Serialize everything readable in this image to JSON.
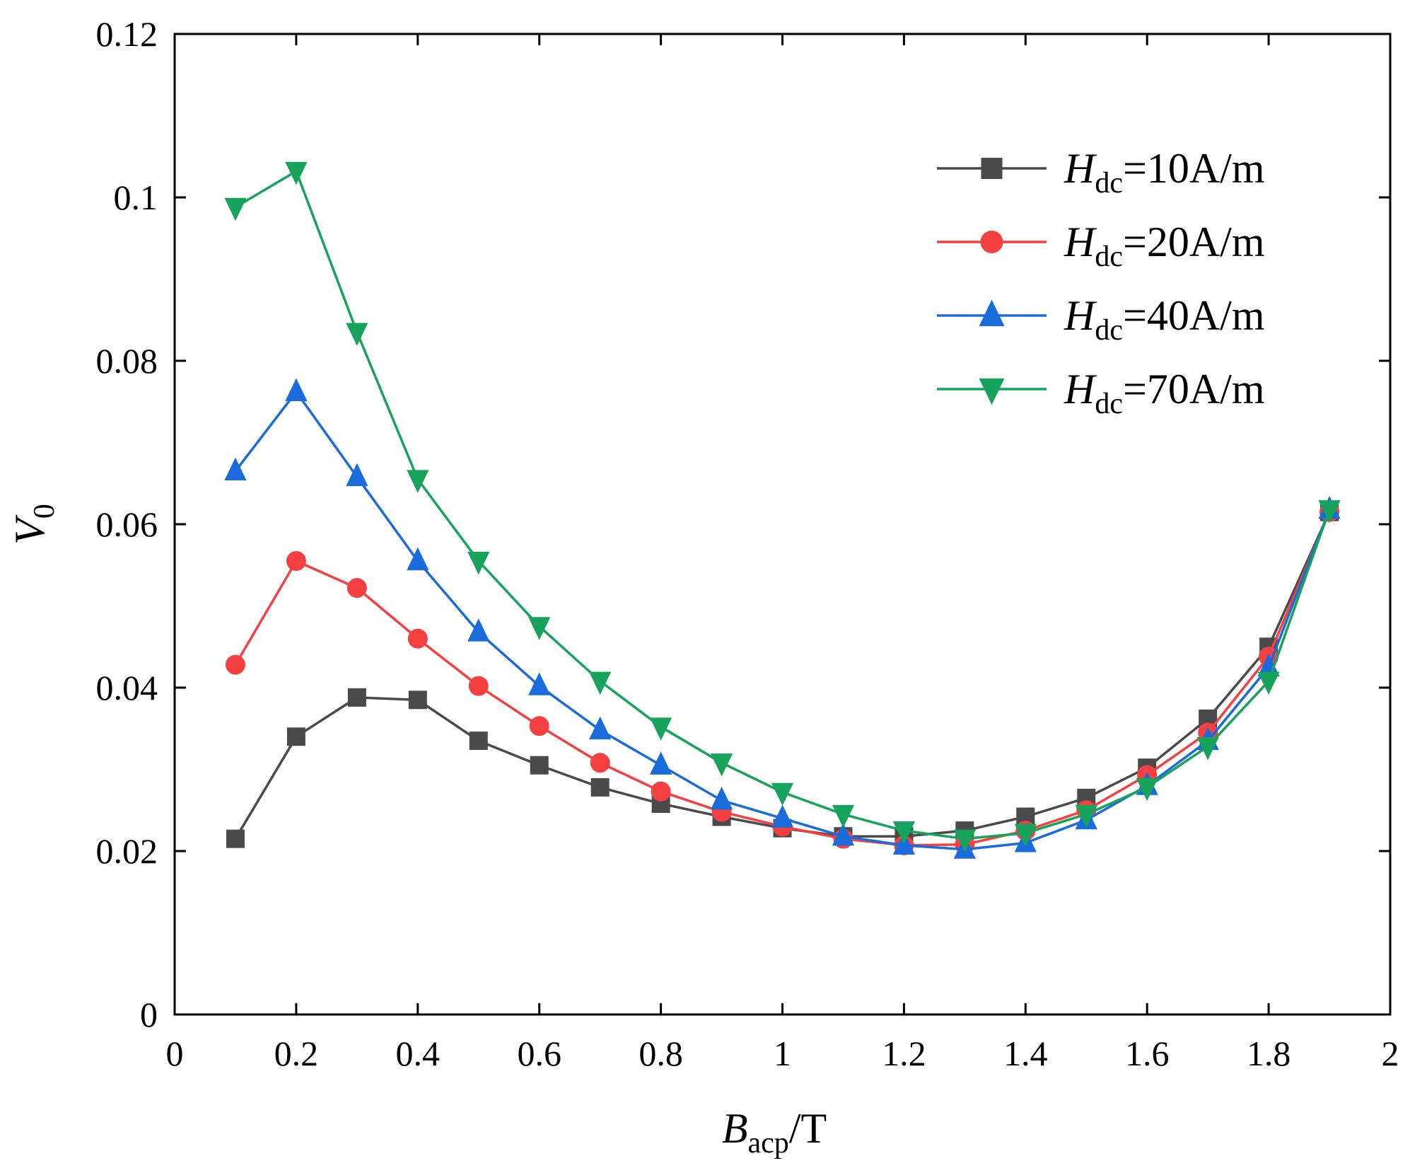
{
  "chart_data": {
    "type": "line",
    "title": "",
    "xlabel": {
      "main": "B",
      "sub": "acp",
      "suffix": "/T"
    },
    "ylabel": {
      "main": "V",
      "sub": "0"
    },
    "xlim": [
      0,
      2
    ],
    "ylim": [
      0,
      0.12
    ],
    "xticks": [
      {
        "value": 0,
        "label": "0"
      },
      {
        "value": 0.2,
        "label": "0.2"
      },
      {
        "value": 0.4,
        "label": "0.4"
      },
      {
        "value": 0.6,
        "label": "0.6"
      },
      {
        "value": 0.8,
        "label": "0.8"
      },
      {
        "value": 1,
        "label": "1"
      },
      {
        "value": 1.2,
        "label": "1.2"
      },
      {
        "value": 1.4,
        "label": "1.4"
      },
      {
        "value": 1.6,
        "label": "1.6"
      },
      {
        "value": 1.8,
        "label": "1.8"
      },
      {
        "value": 2,
        "label": "2"
      }
    ],
    "yticks": [
      {
        "value": 0,
        "label": "0"
      },
      {
        "value": 0.02,
        "label": "0.02"
      },
      {
        "value": 0.04,
        "label": "0.04"
      },
      {
        "value": 0.06,
        "label": "0.06"
      },
      {
        "value": 0.08,
        "label": "0.08"
      },
      {
        "value": 0.1,
        "label": "0.1"
      },
      {
        "value": 0.12,
        "label": "0.12"
      }
    ],
    "grid": false,
    "legend_position": "top-right",
    "x": [
      0.1,
      0.2,
      0.3,
      0.4,
      0.5,
      0.6,
      0.7,
      0.8,
      0.9,
      1.0,
      1.1,
      1.2,
      1.3,
      1.4,
      1.5,
      1.6,
      1.7,
      1.8,
      1.9
    ],
    "series": [
      {
        "name": "Hdc=10A/m",
        "label_main": "H",
        "label_sub": "dc",
        "label_rest": "=10A/m",
        "color": "#4a4a4a",
        "marker": "square",
        "values": [
          0.0215,
          0.034,
          0.0388,
          0.0385,
          0.0335,
          0.0305,
          0.0278,
          0.0258,
          0.0242,
          0.0228,
          0.0218,
          0.0218,
          0.0225,
          0.0242,
          0.0265,
          0.0302,
          0.0362,
          0.045,
          0.0615
        ]
      },
      {
        "name": "Hdc=20A/m",
        "label_main": "H",
        "label_sub": "dc",
        "label_rest": "=20A/m",
        "color": "#f44040",
        "marker": "circle",
        "values": [
          0.0428,
          0.0555,
          0.0522,
          0.046,
          0.0402,
          0.0353,
          0.0308,
          0.0273,
          0.0248,
          0.023,
          0.0215,
          0.0207,
          0.0208,
          0.0225,
          0.025,
          0.0293,
          0.0345,
          0.0438,
          0.0615
        ]
      },
      {
        "name": "Hdc=40A/m",
        "label_main": "H",
        "label_sub": "dc",
        "label_rest": "=40A/m",
        "color": "#1a6bdc",
        "marker": "triangle-up",
        "values": [
          0.0665,
          0.0762,
          0.0658,
          0.0555,
          0.0468,
          0.0402,
          0.0348,
          0.0305,
          0.0262,
          0.024,
          0.0218,
          0.0207,
          0.0202,
          0.021,
          0.0238,
          0.028,
          0.0335,
          0.0425,
          0.0618
        ]
      },
      {
        "name": "Hdc=70A/m",
        "label_main": "H",
        "label_sub": "dc",
        "label_rest": "=70A/m",
        "color": "#17a35c",
        "marker": "triangle-down",
        "values": [
          0.0988,
          0.1032,
          0.0835,
          0.0655,
          0.0555,
          0.0475,
          0.0408,
          0.0352,
          0.0308,
          0.0272,
          0.0245,
          0.0225,
          0.0215,
          0.0222,
          0.0245,
          0.0278,
          0.0328,
          0.0408,
          0.0618
        ]
      }
    ]
  }
}
